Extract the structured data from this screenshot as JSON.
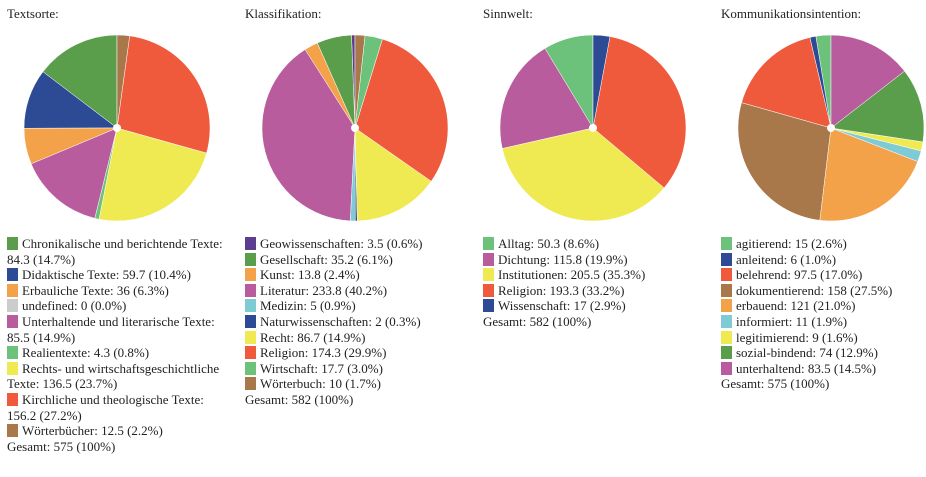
{
  "chart_data": [
    {
      "type": "pie",
      "title": "Textsorte:",
      "categories": [
        "Chronikalische und berichtende Texte",
        "Didaktische Texte",
        "Erbauliche Texte",
        "undefined",
        "Unterhaltende und literarische Texte",
        "Realientexte",
        "Rechts- und wirtschaftsgeschichtliche Texte",
        "Kirchliche und theologische Texte",
        "Wörterbücher"
      ],
      "values": [
        84.3,
        59.7,
        36,
        0,
        85.5,
        4.3,
        136.5,
        156.2,
        12.5
      ],
      "value_labels": [
        "84.3 (14.7%)",
        "59.7 (10.4%)",
        "36 (6.3%)",
        "0 (0.0%)",
        "85.5 (14.9%)",
        "4.3 (0.8%)",
        "136.5 (23.7%)",
        "156.2 (27.2%)",
        "12.5 (2.2%)"
      ],
      "colors": [
        "#5a9e4b",
        "#2d4a94",
        "#f4a24a",
        "#cccccc",
        "#b85c9e",
        "#6cc27a",
        "#f0ea52",
        "#f05a3c",
        "#a8774a"
      ],
      "total_label": "Gesamt: 575 (100%)"
    },
    {
      "type": "pie",
      "title": "Klassifikation:",
      "categories": [
        "Geowissenschaften",
        "Gesellschaft",
        "Kunst",
        "Literatur",
        "Medizin",
        "Naturwissenschaften",
        "Recht",
        "Religion",
        "Wirtschaft",
        "Wörterbuch"
      ],
      "values": [
        3.5,
        35.2,
        13.8,
        233.8,
        5,
        2,
        86.7,
        174.3,
        17.7,
        10
      ],
      "value_labels": [
        "3.5 (0.6%)",
        "35.2 (6.1%)",
        "13.8 (2.4%)",
        "233.8 (40.2%)",
        "5 (0.9%)",
        "2 (0.3%)",
        "86.7 (14.9%)",
        "174.3 (29.9%)",
        "17.7 (3.0%)",
        "10 (1.7%)"
      ],
      "colors": [
        "#5c3d8f",
        "#5a9e4b",
        "#f4a24a",
        "#b85c9e",
        "#7ecbd6",
        "#2d4a94",
        "#f0ea52",
        "#f05a3c",
        "#6cc27a",
        "#a8774a"
      ],
      "total_label": "Gesamt: 582 (100%)"
    },
    {
      "type": "pie",
      "title": "Sinnwelt:",
      "categories": [
        "Alltag",
        "Dichtung",
        "Institutionen",
        "Religion",
        "Wissenschaft"
      ],
      "values": [
        50.3,
        115.8,
        205.5,
        193.3,
        17
      ],
      "value_labels": [
        "50.3 (8.6%)",
        "115.8 (19.9%)",
        "205.5 (35.3%)",
        "193.3 (33.2%)",
        "17 (2.9%)"
      ],
      "colors": [
        "#6cc27a",
        "#b85c9e",
        "#f0ea52",
        "#f05a3c",
        "#2d4a94"
      ],
      "total_label": "Gesamt: 582 (100%)"
    },
    {
      "type": "pie",
      "title": "Kommunikationsintention:",
      "categories": [
        "agitierend",
        "anleitend",
        "belehrend",
        "dokumentierend",
        "erbauend",
        "informiert",
        "legitimierend",
        "sozial-bindend",
        "unterhaltend"
      ],
      "values": [
        15,
        6,
        97.5,
        158,
        121,
        11,
        9,
        74,
        83.5
      ],
      "value_labels": [
        "15 (2.6%)",
        "6 (1.0%)",
        "97.5 (17.0%)",
        "158 (27.5%)",
        "121 (21.0%)",
        "11 (1.9%)",
        "9 (1.6%)",
        "74 (12.9%)",
        "83.5 (14.5%)"
      ],
      "colors": [
        "#6cc27a",
        "#2d4a94",
        "#f05a3c",
        "#a8774a",
        "#f4a24a",
        "#7ecbd6",
        "#f0ea52",
        "#5a9e4b",
        "#b85c9e"
      ],
      "total_label": "Gesamt: 575 (100%)"
    }
  ]
}
